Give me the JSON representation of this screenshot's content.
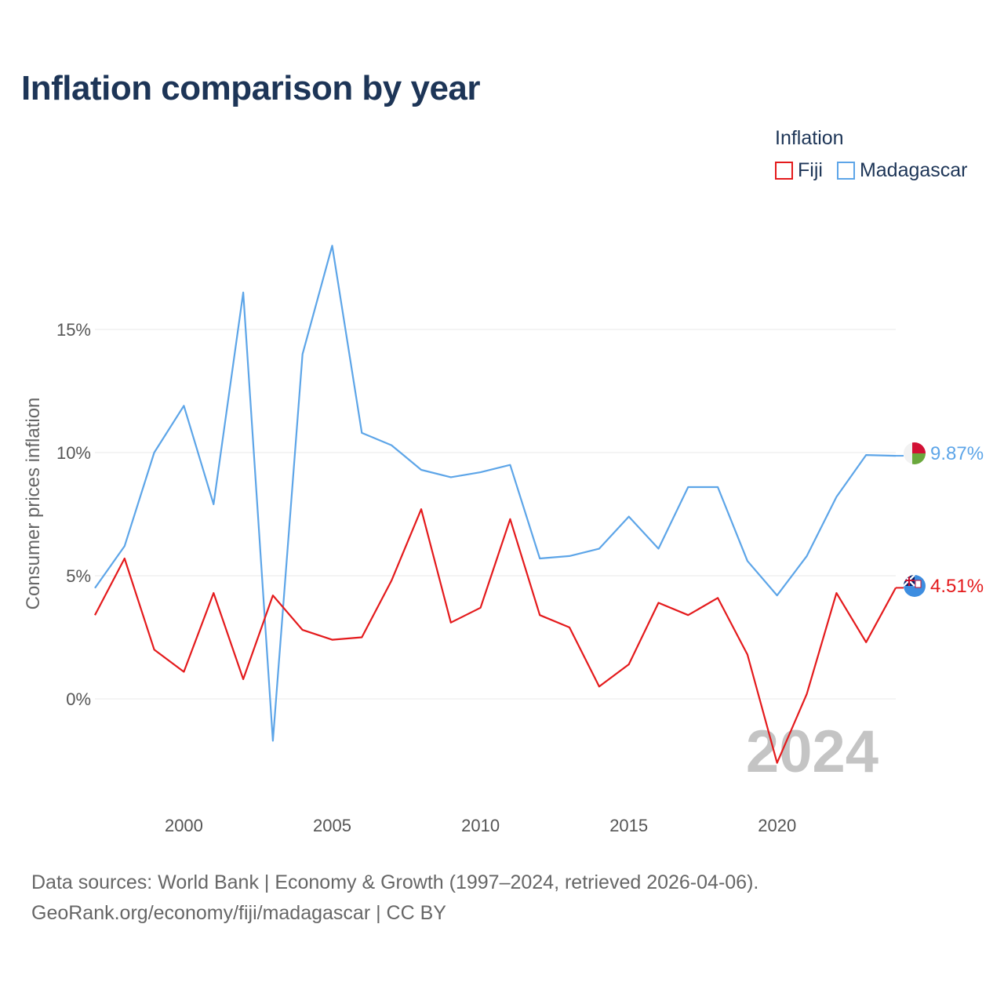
{
  "title": "Inflation comparison by year",
  "legend": {
    "title": "Inflation",
    "items": [
      {
        "name": "Fiji",
        "color": "#e41a1c"
      },
      {
        "name": "Madagascar",
        "color": "#5da5e8"
      }
    ]
  },
  "footer": {
    "line1": "Data sources: World Bank | Economy & Growth (1997–2024, retrieved 2026-04-06).",
    "line2": "GeoRank.org/economy/fiji/madagascar | CC BY"
  },
  "chart_data": {
    "type": "line",
    "title": "Inflation comparison by year",
    "xlabel": "",
    "ylabel": "Consumer prices inflation",
    "year_watermark": "2024",
    "xlim": [
      1997,
      2024
    ],
    "ylim": [
      -3.9,
      20
    ],
    "x_ticks": [
      2000,
      2005,
      2010,
      2015,
      2020
    ],
    "x_tick_labels": [
      "2000",
      "2005",
      "2010",
      "2015",
      "2020"
    ],
    "y_ticks": [
      0,
      5,
      10,
      15
    ],
    "y_tick_labels": [
      "0%",
      "5%",
      "10%",
      "15%"
    ],
    "grid": true,
    "x": [
      1997,
      1998,
      1999,
      2000,
      2001,
      2002,
      2003,
      2004,
      2005,
      2006,
      2007,
      2008,
      2009,
      2010,
      2011,
      2012,
      2013,
      2014,
      2015,
      2016,
      2017,
      2018,
      2019,
      2020,
      2021,
      2022,
      2023,
      2024
    ],
    "series": [
      {
        "name": "Fiji",
        "color": "#e41a1c",
        "end_label": "4.51%",
        "values": [
          3.4,
          5.7,
          2.0,
          1.1,
          4.3,
          0.8,
          4.2,
          2.8,
          2.4,
          2.5,
          4.8,
          7.7,
          3.1,
          3.7,
          7.3,
          3.4,
          2.9,
          0.5,
          1.4,
          3.9,
          3.4,
          4.1,
          1.8,
          -2.6,
          0.2,
          4.3,
          2.3,
          4.51
        ]
      },
      {
        "name": "Madagascar",
        "color": "#5da5e8",
        "end_label": "9.87%",
        "values": [
          4.5,
          6.2,
          10.0,
          11.9,
          7.9,
          16.5,
          -1.7,
          14.0,
          18.4,
          10.8,
          10.3,
          9.3,
          9.0,
          9.2,
          9.5,
          5.7,
          5.8,
          6.1,
          7.4,
          6.1,
          8.6,
          8.6,
          5.6,
          4.2,
          5.8,
          8.2,
          9.9,
          9.87
        ]
      }
    ]
  }
}
